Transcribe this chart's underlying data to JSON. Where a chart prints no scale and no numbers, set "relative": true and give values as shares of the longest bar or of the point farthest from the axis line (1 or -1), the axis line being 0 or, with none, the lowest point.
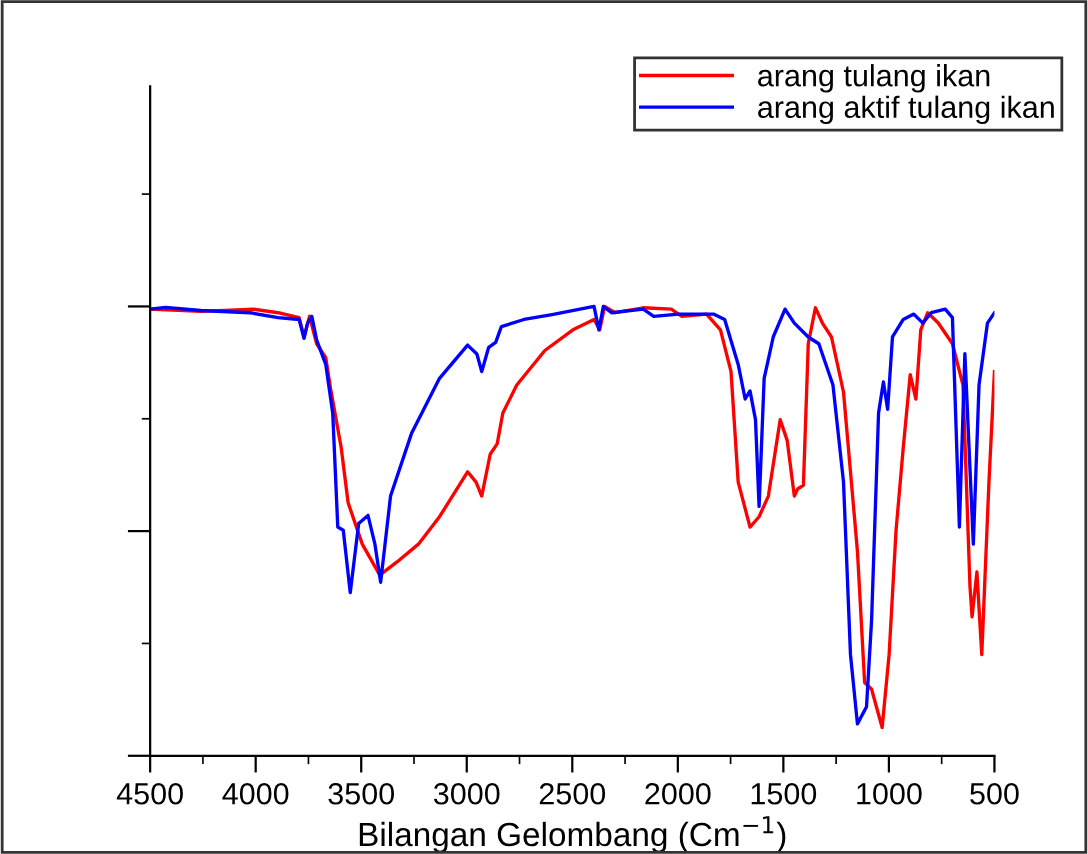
{
  "chart_data": {
    "type": "line",
    "relative": true,
    "xlabel": "Bilangan Gelombang (Cm$^{−1}$)",
    "xlim": [
      4500,
      500
    ],
    "xticks": [
      4500,
      4000,
      3500,
      3000,
      2500,
      2000,
      1500,
      1000,
      500
    ],
    "legend": "top right",
    "tick_labels": "x",
    "grid": false,
    "series": [
      {
        "name": "arang tulang ikan",
        "color": "#ff0000",
        "x": [
          4500,
          4260,
          4011,
          3894,
          3794,
          3771,
          3745,
          3711,
          3668,
          3645,
          3595,
          3562,
          3495,
          3412,
          3329,
          3229,
          3129,
          2996,
          2956,
          2929,
          2889,
          2856,
          2829,
          2763,
          2630,
          2497,
          2397,
          2370,
          2347,
          2297,
          2164,
          2031,
          1981,
          1864,
          1798,
          1748,
          1714,
          1658,
          1615,
          1571,
          1515,
          1482,
          1448,
          1432,
          1405,
          1382,
          1348,
          1315,
          1272,
          1215,
          1149,
          1115,
          1082,
          1032,
          999,
          966,
          932,
          899,
          872,
          849,
          816,
          766,
          699,
          649,
          616,
          606,
          583,
          560,
          526,
          500
        ],
        "values": [
          0.994,
          0.989,
          0.994,
          0.986,
          0.975,
          0.932,
          0.978,
          0.917,
          0.886,
          0.817,
          0.686,
          0.563,
          0.471,
          0.402,
          0.432,
          0.471,
          0.532,
          0.632,
          0.609,
          0.578,
          0.671,
          0.694,
          0.763,
          0.825,
          0.902,
          0.948,
          0.971,
          0.948,
          1.0,
          0.986,
          0.997,
          0.994,
          0.978,
          0.983,
          0.948,
          0.855,
          0.609,
          0.509,
          0.532,
          0.578,
          0.748,
          0.702,
          0.578,
          0.594,
          0.602,
          0.917,
          0.997,
          0.963,
          0.932,
          0.809,
          0.455,
          0.163,
          0.148,
          0.063,
          0.225,
          0.502,
          0.686,
          0.848,
          0.794,
          0.948,
          0.986,
          0.963,
          0.917,
          0.825,
          0.378,
          0.309,
          0.409,
          0.225,
          0.609,
          0.855
        ]
      },
      {
        "name": "arang aktif tulang ikan",
        "color": "#0000ff",
        "x": [
          4500,
          4427,
          4260,
          4027,
          3894,
          3794,
          3771,
          3754,
          3734,
          3711,
          3668,
          3635,
          3611,
          3585,
          3552,
          3512,
          3468,
          3435,
          3408,
          3361,
          3262,
          3129,
          2996,
          2952,
          2929,
          2896,
          2863,
          2836,
          2729,
          2596,
          2397,
          2374,
          2353,
          2314,
          2164,
          2114,
          1997,
          1831,
          1778,
          1714,
          1681,
          1658,
          1632,
          1615,
          1591,
          1548,
          1492,
          1448,
          1382,
          1332,
          1265,
          1215,
          1182,
          1149,
          1106,
          1082,
          1049,
          1026,
          1006,
          983,
          932,
          882,
          839,
          799,
          733,
          699,
          666,
          640,
          600,
          573,
          533,
          500
        ],
        "values": [
          0.994,
          0.998,
          0.991,
          0.986,
          0.975,
          0.971,
          0.929,
          0.963,
          0.978,
          0.925,
          0.871,
          0.763,
          0.509,
          0.502,
          0.363,
          0.517,
          0.535,
          0.471,
          0.386,
          0.578,
          0.717,
          0.84,
          0.914,
          0.894,
          0.855,
          0.909,
          0.92,
          0.955,
          0.971,
          0.982,
          1.0,
          0.948,
          1.0,
          0.986,
          0.994,
          0.978,
          0.983,
          0.983,
          0.971,
          0.871,
          0.794,
          0.812,
          0.748,
          0.555,
          0.84,
          0.932,
          0.994,
          0.963,
          0.932,
          0.917,
          0.825,
          0.609,
          0.225,
          0.071,
          0.109,
          0.302,
          0.763,
          0.832,
          0.771,
          0.932,
          0.971,
          0.983,
          0.963,
          0.986,
          0.994,
          0.975,
          0.509,
          0.895,
          0.471,
          0.825,
          0.963,
          0.986
        ]
      }
    ]
  }
}
